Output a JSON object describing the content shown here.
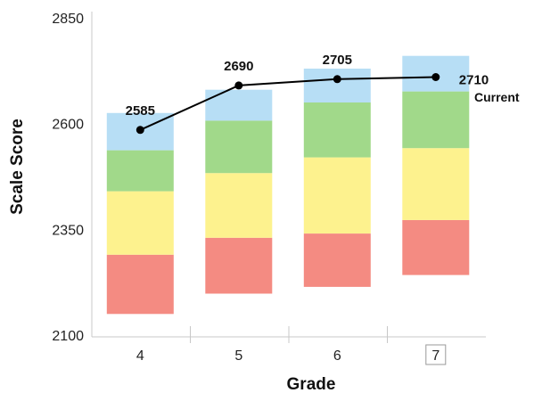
{
  "chart_data": {
    "type": "bar",
    "xlabel": "Grade",
    "ylabel": "Scale Score",
    "ylim": [
      2100,
      2850
    ],
    "yticks": [
      2100,
      2350,
      2600,
      2850
    ],
    "categories": [
      "4",
      "5",
      "6",
      "7"
    ],
    "selected_category": "7",
    "band_colors": [
      "#f48b82",
      "#fdf28e",
      "#a1d98a",
      "#b7def5"
    ],
    "ranges": [
      {
        "grade": "4",
        "bands": [
          [
            2150,
            2290
          ],
          [
            2290,
            2440
          ],
          [
            2440,
            2537
          ],
          [
            2537,
            2625
          ]
        ]
      },
      {
        "grade": "5",
        "bands": [
          [
            2198,
            2330
          ],
          [
            2330,
            2483
          ],
          [
            2483,
            2607
          ],
          [
            2607,
            2680
          ]
        ]
      },
      {
        "grade": "6",
        "bands": [
          [
            2214,
            2340
          ],
          [
            2340,
            2520
          ],
          [
            2520,
            2650
          ],
          [
            2650,
            2730
          ]
        ]
      },
      {
        "grade": "7",
        "bands": [
          [
            2242,
            2372
          ],
          [
            2372,
            2542
          ],
          [
            2542,
            2676
          ],
          [
            2676,
            2760
          ]
        ]
      }
    ],
    "series": [
      {
        "values": [
          2585,
          2690,
          2705,
          2710
        ],
        "labels": [
          "2585",
          "2690",
          "2705",
          "2710"
        ]
      }
    ],
    "annotation": "Current",
    "line_color": "#000000"
  }
}
